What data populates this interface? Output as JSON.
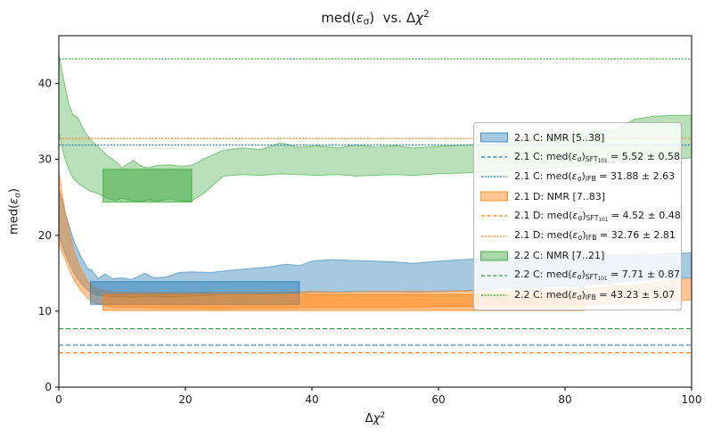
{
  "title_parts": [
    [
      "med(",
      "n"
    ],
    [
      "ε",
      "i"
    ],
    [
      "σ",
      "sub"
    ],
    [
      ")  vs. Δ",
      "n"
    ],
    [
      "χ",
      "i"
    ],
    [
      "2",
      "sup"
    ]
  ],
  "axes": {
    "xlabel_parts": [
      [
        "Δ",
        "n"
      ],
      [
        "χ",
        "i"
      ],
      [
        "2",
        "sup"
      ]
    ],
    "ylabel_parts": [
      [
        "med(",
        "n"
      ],
      [
        "ε",
        "i"
      ],
      [
        "σ",
        "sub"
      ],
      [
        ")",
        "n"
      ]
    ],
    "x_ticks": [
      0,
      20,
      40,
      60,
      80,
      100
    ],
    "y_ticks": [
      0,
      10,
      20,
      30,
      40
    ]
  },
  "colors": {
    "blue": "#1f77b4",
    "orange": "#ff7f0e",
    "green": "#2ca02c"
  },
  "chart_data": {
    "type": "area",
    "title": "med(εσ) vs. Δχ²",
    "xlabel": "Δχ²",
    "ylabel": "med(εσ)",
    "xlim": [
      0,
      100
    ],
    "ylim": [
      0,
      46.3
    ],
    "grid": false,
    "legend_position": "center right",
    "bands": [
      {
        "name": "2.1 C: NMR [5..38]",
        "color": "blue",
        "fill_alpha": 0.4,
        "points": [
          [
            0,
            20,
            26
          ],
          [
            0.5,
            18.8,
            24.8
          ],
          [
            1,
            17.6,
            23
          ],
          [
            1.7,
            16.2,
            21
          ],
          [
            2.5,
            14.9,
            19
          ],
          [
            3.5,
            13.7,
            17.2
          ],
          [
            4.5,
            12.8,
            15.7
          ],
          [
            5.2,
            12.4,
            15.4
          ],
          [
            6.2,
            12.1,
            14.3
          ],
          [
            7.3,
            12,
            14.9
          ],
          [
            8.5,
            11.9,
            14.3
          ],
          [
            10,
            11.9,
            14.4
          ],
          [
            11.5,
            11.8,
            14.2
          ],
          [
            13.7,
            11.9,
            15
          ],
          [
            15,
            11.9,
            14.4
          ],
          [
            17,
            11.8,
            14.5
          ],
          [
            19,
            11.9,
            15.1
          ],
          [
            21,
            12,
            15.2
          ],
          [
            24,
            12.1,
            15.1
          ],
          [
            27,
            12.2,
            15.4
          ],
          [
            30,
            12.2,
            15.6
          ],
          [
            33,
            12.3,
            15.8
          ],
          [
            36,
            12.4,
            16.2
          ],
          [
            38,
            12.4,
            16
          ],
          [
            40,
            12.5,
            16.6
          ],
          [
            43,
            12.5,
            16.8
          ],
          [
            46,
            12.6,
            16.7
          ],
          [
            50,
            12.6,
            16.6
          ],
          [
            53,
            12.6,
            16.5
          ],
          [
            56,
            12.5,
            16.3
          ],
          [
            60,
            12.6,
            16.6
          ],
          [
            64,
            12.7,
            16.8
          ],
          [
            70,
            13,
            17
          ],
          [
            76,
            13.2,
            17.2
          ],
          [
            82,
            13.4,
            17.3
          ],
          [
            88,
            13.8,
            17.4
          ],
          [
            94,
            14.2,
            17.5
          ],
          [
            100,
            14.4,
            17.7
          ]
        ]
      },
      {
        "name": "2.1 D: NMR [7..83]",
        "color": "orange",
        "fill_alpha": 0.45,
        "points": [
          [
            0,
            19,
            28.5
          ],
          [
            0.5,
            17.8,
            25.8
          ],
          [
            1,
            16.8,
            23.2
          ],
          [
            1.7,
            15.3,
            20.2
          ],
          [
            2.5,
            13.9,
            17.6
          ],
          [
            3.5,
            12.7,
            15.6
          ],
          [
            4.5,
            11.7,
            14
          ],
          [
            5.5,
            11.1,
            13.2
          ],
          [
            6.5,
            10.9,
            12.8
          ],
          [
            8,
            10.6,
            12.6
          ],
          [
            10,
            10.5,
            12.5
          ],
          [
            13,
            10.5,
            12.4
          ],
          [
            16,
            10.4,
            12.5
          ],
          [
            20,
            10.4,
            12.4
          ],
          [
            25,
            10.3,
            12.5
          ],
          [
            30,
            10.4,
            12.5
          ],
          [
            35,
            10.4,
            12.5
          ],
          [
            40,
            10.5,
            12.6
          ],
          [
            45,
            10.5,
            12.5
          ],
          [
            50,
            10.5,
            12.6
          ],
          [
            55,
            10.5,
            12.6
          ],
          [
            60,
            10.6,
            12.6
          ],
          [
            65,
            10.6,
            12.7
          ],
          [
            70,
            10.7,
            12.7
          ],
          [
            75,
            10.7,
            12.8
          ],
          [
            80,
            10.8,
            12.9
          ],
          [
            83,
            10.8,
            13
          ],
          [
            87,
            10.9,
            13.2
          ],
          [
            91,
            11,
            13.5
          ],
          [
            95,
            11.2,
            13.9
          ],
          [
            100,
            11.5,
            14.3
          ]
        ]
      },
      {
        "name": "2.2 C: NMR [7..21]",
        "color": "green",
        "fill_alpha": 0.33,
        "points": [
          [
            0,
            33.5,
            43.8
          ],
          [
            0.7,
            30.8,
            40.8
          ],
          [
            1.5,
            28.8,
            37.5
          ],
          [
            2.2,
            27.6,
            35.9
          ],
          [
            3,
            26.9,
            35.5
          ],
          [
            4,
            26.3,
            33.8
          ],
          [
            5,
            25.8,
            32.6
          ],
          [
            6.2,
            25.5,
            31.7
          ],
          [
            7.5,
            24.9,
            30.6
          ],
          [
            9,
            24.6,
            29.7
          ],
          [
            10,
            24.9,
            28.9
          ],
          [
            11.8,
            24.5,
            29.9
          ],
          [
            13,
            24.4,
            29.1
          ],
          [
            14.2,
            24.7,
            28.9
          ],
          [
            15.5,
            24.5,
            29.2
          ],
          [
            17.5,
            24.8,
            29.3
          ],
          [
            19.3,
            24.5,
            29.1
          ],
          [
            21,
            24.5,
            29.2
          ],
          [
            23,
            25.6,
            30.1
          ],
          [
            26,
            27.8,
            31.2
          ],
          [
            29,
            28,
            31.5
          ],
          [
            32,
            27.9,
            31.3
          ],
          [
            35,
            28.1,
            32.2
          ],
          [
            38,
            28,
            31.6
          ],
          [
            41,
            27.9,
            31.8
          ],
          [
            44,
            28,
            31.5
          ],
          [
            47,
            27.8,
            31.9
          ],
          [
            50,
            27.9,
            31.6
          ],
          [
            53,
            28,
            31.8
          ],
          [
            56,
            27.9,
            31.5
          ],
          [
            60,
            28.1,
            31.7
          ],
          [
            64,
            28.2,
            31.9
          ],
          [
            68,
            28.4,
            32
          ],
          [
            72,
            28.6,
            32.3
          ],
          [
            76,
            28.8,
            32.6
          ],
          [
            80,
            29,
            33
          ],
          [
            84,
            29.3,
            33.5
          ],
          [
            88,
            29.6,
            34
          ],
          [
            91,
            29.9,
            35.3
          ],
          [
            94,
            30,
            35.7
          ],
          [
            97,
            30.1,
            35.8
          ],
          [
            100,
            30.2,
            35.8
          ]
        ]
      }
    ],
    "rects": [
      {
        "name": "2.1 C NMR range box",
        "color": "blue",
        "x0": 5,
        "x1": 38,
        "y0": 10.9,
        "y1": 13.9,
        "alpha": 0.45
      },
      {
        "name": "2.1 D NMR range box",
        "color": "orange",
        "x0": 7,
        "x1": 83,
        "y0": 10.1,
        "y1": 12.2,
        "alpha": 0.5
      },
      {
        "name": "2.2 C NMR range box",
        "color": "green",
        "x0": 7,
        "x1": 21,
        "y0": 24.4,
        "y1": 28.7,
        "alpha": 0.45
      }
    ],
    "hlines": [
      {
        "label": "2.1 C med(εσ) SFT101",
        "value": 5.52,
        "err": 0.58,
        "color": "blue",
        "style": "dashed"
      },
      {
        "label": "2.1 C med(εσ) IFB",
        "value": 31.88,
        "err": 2.63,
        "color": "blue",
        "style": "dotted"
      },
      {
        "label": "2.1 D med(εσ) SFT101",
        "value": 4.52,
        "err": 0.48,
        "color": "orange",
        "style": "dashed"
      },
      {
        "label": "2.1 D med(εσ) IFB",
        "value": 32.76,
        "err": 2.81,
        "color": "orange",
        "style": "dotted"
      },
      {
        "label": "2.2 C med(εσ) SFT101",
        "value": 7.71,
        "err": 0.87,
        "color": "green",
        "style": "dashed"
      },
      {
        "label": "2.2 C med(εσ) IFB",
        "value": 43.23,
        "err": 5.07,
        "color": "green",
        "style": "dotted"
      }
    ]
  },
  "legend": {
    "entries": [
      {
        "marker": "patch",
        "color": "blue",
        "alpha": 0.4,
        "parts": [
          [
            "2.1 C: NMR [5..38]",
            "n"
          ]
        ]
      },
      {
        "marker": "dashed",
        "color": "blue",
        "parts": [
          [
            "2.1 C: med(",
            "n"
          ],
          [
            "ε",
            "i"
          ],
          [
            "σ",
            "sub"
          ],
          [
            ")",
            "n"
          ],
          [
            "SFT",
            "sub"
          ],
          [
            "101",
            "subsub"
          ],
          [
            " = 5.52 ± 0.58",
            "n"
          ]
        ]
      },
      {
        "marker": "dotted",
        "color": "blue",
        "parts": [
          [
            "2.1 C: med(",
            "n"
          ],
          [
            "ε",
            "i"
          ],
          [
            "σ",
            "sub"
          ],
          [
            ")",
            "n"
          ],
          [
            "IFB",
            "sub"
          ],
          [
            " = 31.88 ± 2.63",
            "n"
          ]
        ]
      },
      {
        "marker": "patch",
        "color": "orange",
        "alpha": 0.45,
        "parts": [
          [
            "2.1 D: NMR [7..83]",
            "n"
          ]
        ]
      },
      {
        "marker": "dashed",
        "color": "orange",
        "parts": [
          [
            "2.1 D: med(",
            "n"
          ],
          [
            "ε",
            "i"
          ],
          [
            "σ",
            "sub"
          ],
          [
            ")",
            "n"
          ],
          [
            "SFT",
            "sub"
          ],
          [
            "101",
            "subsub"
          ],
          [
            " = 4.52 ± 0.48",
            "n"
          ]
        ]
      },
      {
        "marker": "dotted",
        "color": "orange",
        "parts": [
          [
            "2.1 D: med(",
            "n"
          ],
          [
            "ε",
            "i"
          ],
          [
            "σ",
            "sub"
          ],
          [
            ")",
            "n"
          ],
          [
            "IFB",
            "sub"
          ],
          [
            " = 32.76 ± 2.81",
            "n"
          ]
        ]
      },
      {
        "marker": "patch",
        "color": "green",
        "alpha": 0.4,
        "parts": [
          [
            "2.2 C: NMR [7..21]",
            "n"
          ]
        ]
      },
      {
        "marker": "dashed",
        "color": "green",
        "parts": [
          [
            "2.2 C: med(",
            "n"
          ],
          [
            "ε",
            "i"
          ],
          [
            "σ",
            "sub"
          ],
          [
            ")",
            "n"
          ],
          [
            "SFT",
            "sub"
          ],
          [
            "101",
            "subsub"
          ],
          [
            " = 7.71 ± 0.87",
            "n"
          ]
        ]
      },
      {
        "marker": "dotted",
        "color": "green",
        "parts": [
          [
            "2.2 C: med(",
            "n"
          ],
          [
            "ε",
            "i"
          ],
          [
            "σ",
            "sub"
          ],
          [
            ")",
            "n"
          ],
          [
            "IFB",
            "sub"
          ],
          [
            " = 43.23 ± 5.07",
            "n"
          ]
        ]
      }
    ]
  }
}
